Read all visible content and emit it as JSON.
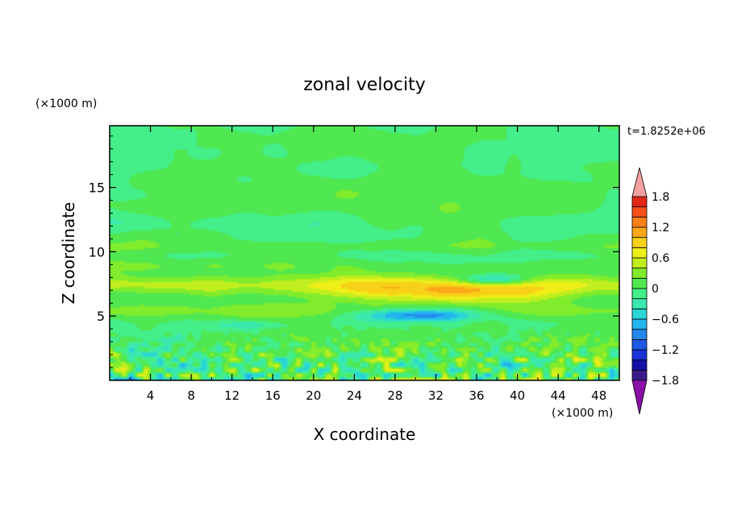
{
  "chart_data": {
    "type": "heatmap",
    "title": "zonal velocity",
    "xlabel": "X coordinate",
    "ylabel": "Z coordinate",
    "x_unit": "(×1000 m)",
    "y_unit": "(×1000 m)",
    "time_label": "t=1.8252e+06",
    "xlim": [
      0,
      50
    ],
    "ylim": [
      0,
      19.8
    ],
    "x_ticks": [
      "4",
      "8",
      "12",
      "16",
      "20",
      "24",
      "28",
      "32",
      "36",
      "40",
      "44",
      "48"
    ],
    "y_ticks": [
      "5",
      "10",
      "15"
    ],
    "colorbar": {
      "min": -2.0,
      "max": 2.0,
      "step": 0.2,
      "tick_labels": [
        "1.8",
        "1.2",
        "0.6",
        "0",
        "−0.6",
        "−1.2",
        "−1.8"
      ],
      "colors": [
        "#8a10a8",
        "#3a1a8a",
        "#1410a8",
        "#1a34d8",
        "#1e5ae6",
        "#2288ee",
        "#22b4ee",
        "#28d6d6",
        "#3ae8b0",
        "#44ee88",
        "#50e850",
        "#80ec2c",
        "#c0ee1e",
        "#eeee18",
        "#f8d018",
        "#fca818",
        "#fc8018",
        "#f45018",
        "#e42818",
        "#f4a0a0"
      ]
    },
    "field_description_bands": [
      {
        "z_range": [
          0,
          3.5
        ],
        "pattern": "small-scale mixed anomalies"
      },
      {
        "z_range": [
          5,
          6
        ],
        "pattern": "positive band with negative core near x=30"
      },
      {
        "z_range": [
          6.5,
          8.3
        ],
        "pattern": "strong positive jet, max near x=34"
      },
      {
        "z_range": [
          8.5,
          9.5
        ],
        "pattern": "weak positive band"
      },
      {
        "z_range": [
          10,
          19.8
        ],
        "pattern": "weak flow near zero"
      }
    ]
  }
}
